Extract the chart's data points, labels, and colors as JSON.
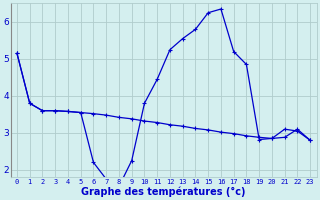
{
  "xlabel": "Graphe des températures (°c)",
  "background_color": "#d4efef",
  "grid_color": "#b0cccc",
  "line_color": "#0000cc",
  "x": [
    0,
    1,
    2,
    3,
    4,
    5,
    6,
    7,
    8,
    9,
    10,
    11,
    12,
    13,
    14,
    15,
    16,
    17,
    18,
    19,
    20,
    21,
    22,
    23
  ],
  "y_line1": [
    5.15,
    3.8,
    3.6,
    3.6,
    3.58,
    3.55,
    3.52,
    3.48,
    3.42,
    3.38,
    3.32,
    3.28,
    3.22,
    3.18,
    3.12,
    3.08,
    3.02,
    2.98,
    2.92,
    2.88,
    2.85,
    3.1,
    3.05,
    2.8
  ],
  "y_line2": [
    5.15,
    3.8,
    3.6,
    3.6,
    3.58,
    3.55,
    2.2,
    1.75,
    1.55,
    2.25,
    3.8,
    4.45,
    5.25,
    5.55,
    5.8,
    6.25,
    6.35,
    5.2,
    4.85,
    2.82,
    2.85,
    2.88,
    3.1,
    2.8
  ],
  "ylim_min": 1.8,
  "ylim_max": 6.5,
  "xlim_min": -0.5,
  "xlim_max": 23.5,
  "yticks": [
    2,
    3,
    4,
    5,
    6
  ],
  "xtick_labels": [
    "0",
    "1",
    "2",
    "3",
    "4",
    "5",
    "6",
    "7",
    "8",
    "9",
    "10",
    "11",
    "12",
    "13",
    "14",
    "15",
    "16",
    "17",
    "18",
    "19",
    "20",
    "21",
    "22",
    "23"
  ],
  "tick_fontsize": 5,
  "xlabel_fontsize": 7,
  "ytick_fontsize": 6.5
}
